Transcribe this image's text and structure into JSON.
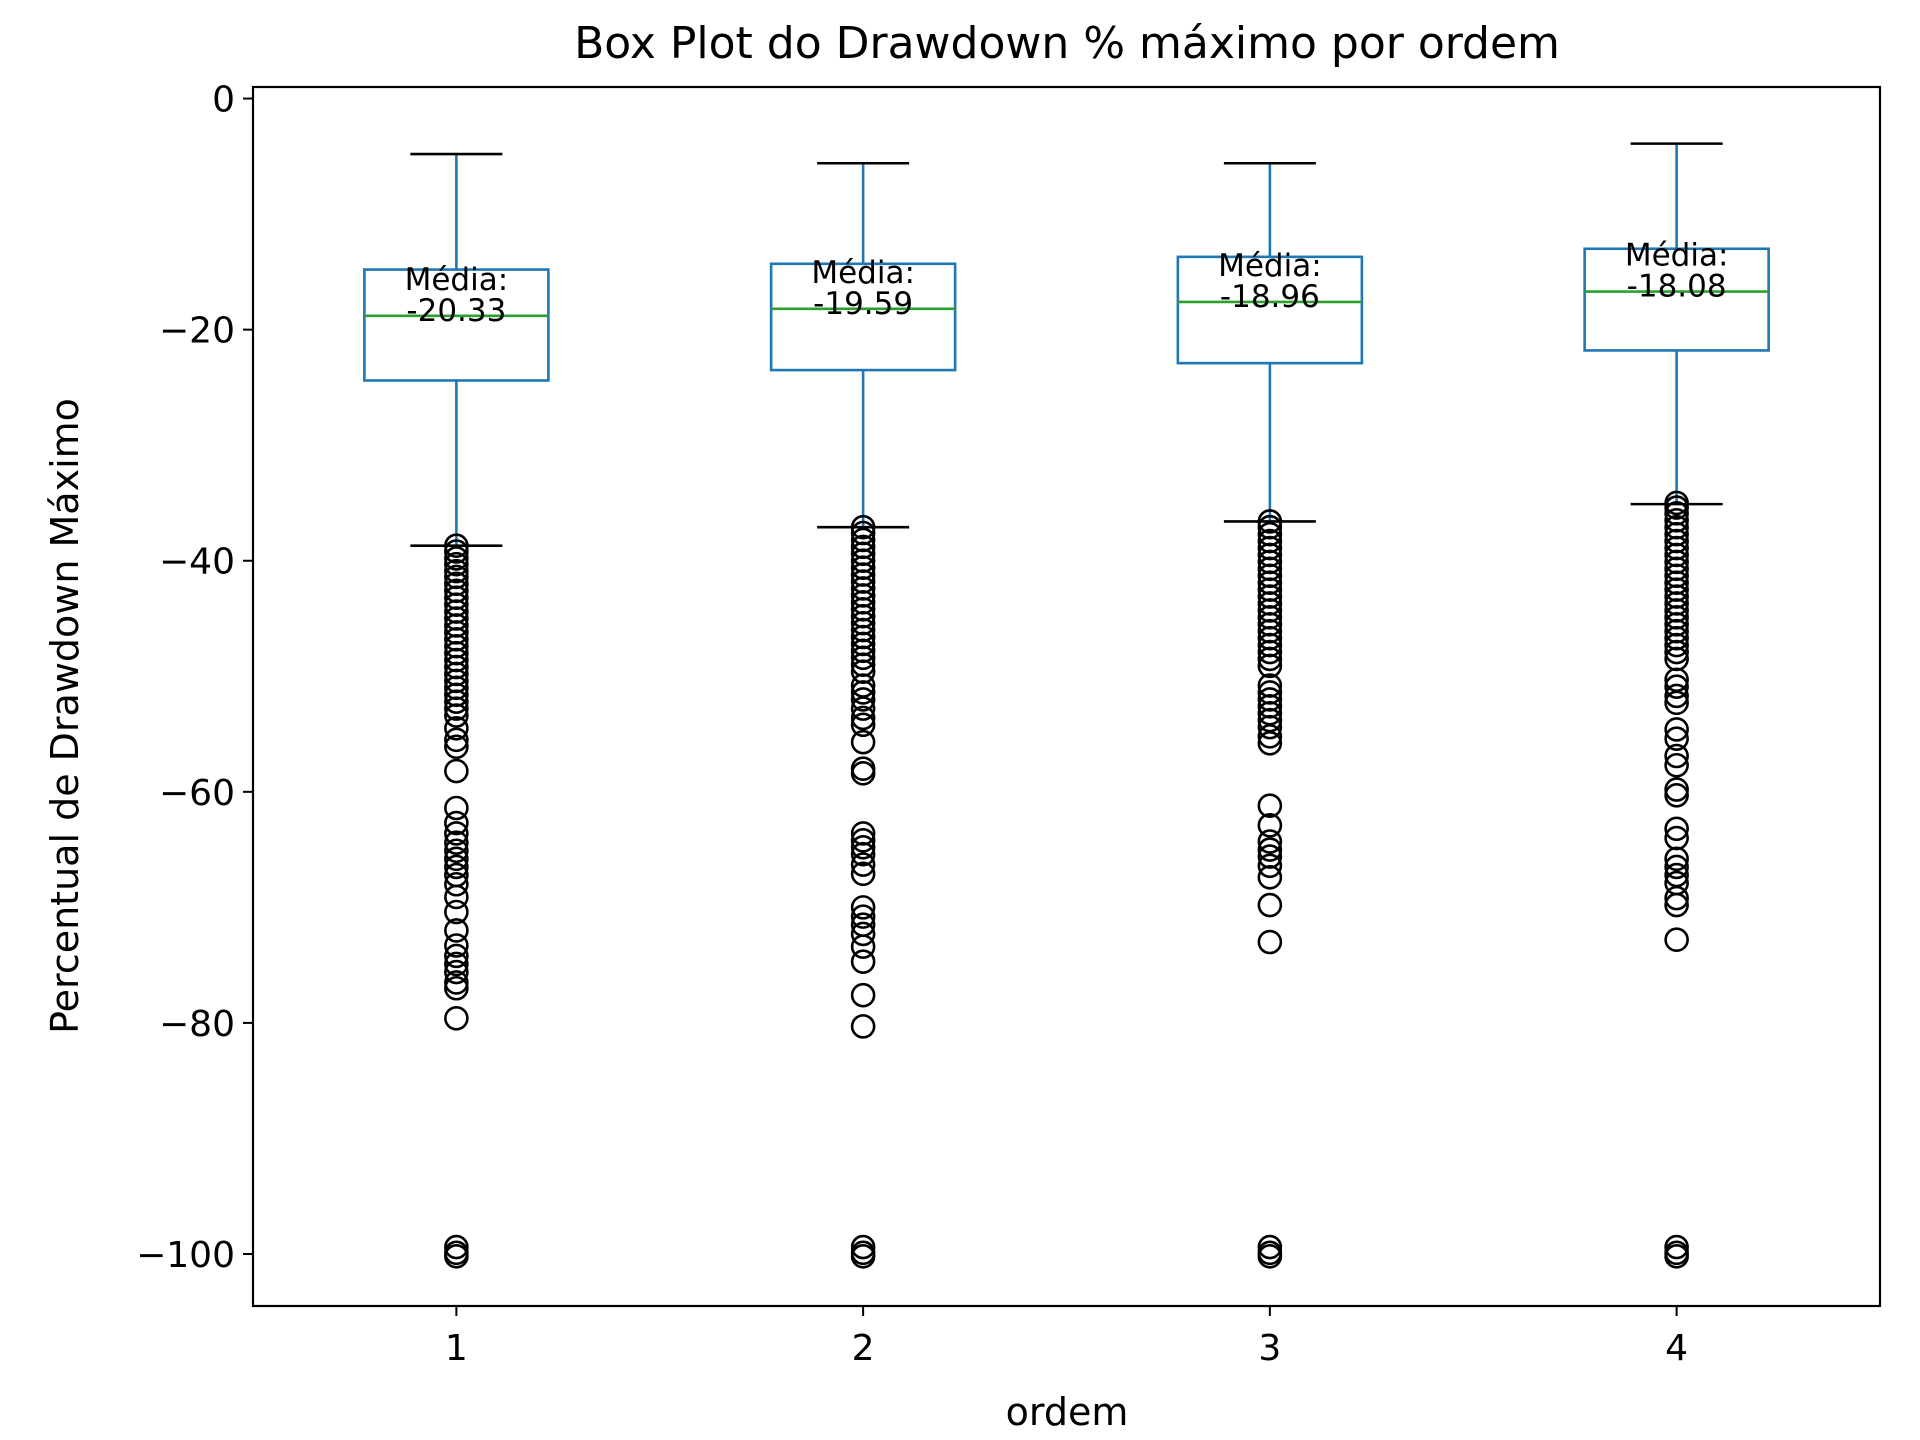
{
  "chart_data": {
    "type": "box",
    "title": "Box Plot do Drawdown % máximo por ordem",
    "xlabel": "ordem",
    "ylabel": "Percentual de Drawdown Máximo",
    "categories": [
      "1",
      "2",
      "3",
      "4"
    ],
    "ylim": [
      -104.5,
      1
    ],
    "yticks": [
      0,
      -20,
      -40,
      -60,
      -80,
      -100
    ],
    "ytick_labels": [
      "0",
      "−20",
      "−40",
      "−60",
      "−80",
      "−100"
    ],
    "grid": false,
    "colors": {
      "box": "#1f77b4",
      "median": "#2ca02c",
      "cap": "#000000",
      "flier": "#000000"
    },
    "annotation_label": "Média:",
    "boxes": [
      {
        "category": "1",
        "whisker_high": -4.8,
        "q3": -14.8,
        "median": -18.8,
        "q1": -24.4,
        "whisker_low": -38.7,
        "mean_label": "-20.33",
        "fliers": [
          -38.7,
          -39.2,
          -39.8,
          -40.3,
          -40.9,
          -41.4,
          -42.0,
          -42.6,
          -43.2,
          -43.8,
          -44.4,
          -45.0,
          -45.6,
          -46.2,
          -46.8,
          -47.4,
          -48.0,
          -48.6,
          -49.2,
          -49.8,
          -50.4,
          -51.0,
          -51.6,
          -52.2,
          -52.8,
          -53.4,
          -54.5,
          -55.5,
          -56.1,
          -58.2,
          -61.4,
          -62.7,
          -63.6,
          -64.4,
          -65.1,
          -65.8,
          -66.5,
          -67.2,
          -68.0,
          -69.1,
          -70.4,
          -72.0,
          -73.3,
          -74.2,
          -74.9,
          -75.6,
          -76.5,
          -77.0,
          -79.6,
          -99.4,
          -99.9,
          -100.2
        ]
      },
      {
        "category": "2",
        "whisker_high": -5.6,
        "q3": -14.3,
        "median": -18.2,
        "q1": -23.5,
        "whisker_low": -37.1,
        "mean_label": "-19.59",
        "fliers": [
          -37.1,
          -37.6,
          -38.2,
          -38.8,
          -39.4,
          -40.0,
          -40.6,
          -41.2,
          -41.8,
          -42.4,
          -43.0,
          -43.6,
          -44.2,
          -44.8,
          -45.4,
          -46.0,
          -46.6,
          -47.2,
          -47.8,
          -48.4,
          -49.0,
          -49.6,
          -50.8,
          -51.4,
          -52.0,
          -52.8,
          -53.6,
          -54.2,
          -55.7,
          -58.0,
          -58.4,
          -63.6,
          -64.2,
          -64.8,
          -65.4,
          -66.3,
          -67.1,
          -70.0,
          -70.8,
          -71.5,
          -72.3,
          -73.4,
          -74.7,
          -77.6,
          -80.3,
          -99.4,
          -99.9,
          -100.2
        ]
      },
      {
        "category": "3",
        "whisker_high": -5.6,
        "q3": -13.7,
        "median": -17.6,
        "q1": -22.9,
        "whisker_low": -36.6,
        "mean_label": "-18.96",
        "fliers": [
          -36.6,
          -37.1,
          -37.7,
          -38.3,
          -38.9,
          -39.5,
          -40.1,
          -40.7,
          -41.3,
          -41.9,
          -42.5,
          -43.1,
          -43.7,
          -44.3,
          -44.9,
          -45.5,
          -46.1,
          -46.7,
          -47.3,
          -47.9,
          -48.5,
          -49.1,
          -50.8,
          -51.4,
          -52.0,
          -52.6,
          -53.2,
          -53.8,
          -54.4,
          -55.2,
          -55.8,
          -61.2,
          -62.9,
          -64.3,
          -65.0,
          -65.6,
          -66.4,
          -67.4,
          -69.8,
          -73.0,
          -99.4,
          -99.9,
          -100.2
        ]
      },
      {
        "category": "4",
        "whisker_high": -3.9,
        "q3": -13.0,
        "median": -16.7,
        "q1": -21.8,
        "whisker_low": -35.1,
        "mean_label": "-18.08",
        "fliers": [
          -35.0,
          -35.4,
          -35.9,
          -36.5,
          -37.1,
          -37.7,
          -38.3,
          -38.9,
          -39.5,
          -40.1,
          -40.7,
          -41.3,
          -41.9,
          -42.5,
          -43.1,
          -43.7,
          -44.3,
          -44.9,
          -45.5,
          -46.1,
          -46.7,
          -47.3,
          -47.9,
          -48.5,
          -50.3,
          -50.9,
          -51.7,
          -52.3,
          -54.6,
          -55.4,
          -56.9,
          -57.7,
          -59.8,
          -60.3,
          -63.2,
          -64.0,
          -65.8,
          -66.5,
          -67.2,
          -67.9,
          -69.2,
          -69.8,
          -72.8,
          -99.4,
          -99.9,
          -100.2
        ]
      }
    ]
  }
}
